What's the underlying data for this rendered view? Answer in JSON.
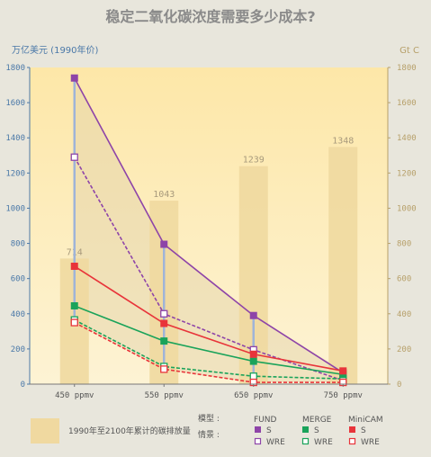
{
  "chart_data": {
    "type": "line",
    "title": "稳定二氧化碳浓度需要多少成本?",
    "ylabel_left": "万亿美元 (1990年价)",
    "ylabel_right": "Gt C",
    "categories": [
      "450 ppmv",
      "550 ppmv",
      "650 ppmv",
      "750 ppmv"
    ],
    "ylim": [
      0,
      1800
    ],
    "yticks": [
      0,
      200,
      400,
      600,
      800,
      1000,
      1200,
      1400,
      1600,
      1800
    ],
    "bars": {
      "name": "1990年至2100年累计的碳排放量",
      "values": [
        714,
        1043,
        1239,
        1348
      ],
      "labels": [
        "714",
        "1043",
        "1239",
        "1348"
      ]
    },
    "series": [
      {
        "model": "FUND",
        "scenario": "S",
        "values": [
          1740,
          795,
          390,
          65
        ],
        "color": "#8e44a8",
        "marker": "filled",
        "dash": false
      },
      {
        "model": "FUND",
        "scenario": "WRE",
        "values": [
          1290,
          400,
          195,
          20
        ],
        "color": "#8e44a8",
        "marker": "open",
        "dash": true
      },
      {
        "model": "MERGE",
        "scenario": "S",
        "values": [
          445,
          245,
          130,
          55
        ],
        "color": "#1aa35a",
        "marker": "filled",
        "dash": false
      },
      {
        "model": "MERGE",
        "scenario": "WRE",
        "values": [
          365,
          100,
          45,
          30
        ],
        "color": "#1aa35a",
        "marker": "open",
        "dash": true
      },
      {
        "model": "MiniCAM",
        "scenario": "S",
        "values": [
          670,
          345,
          170,
          75
        ],
        "color": "#e8343a",
        "marker": "filled",
        "dash": false
      },
      {
        "model": "MiniCAM",
        "scenario": "WRE",
        "values": [
          350,
          85,
          10,
          10
        ],
        "color": "#e8343a",
        "marker": "open",
        "dash": true
      }
    ],
    "grid": false
  },
  "legend": {
    "bar_label": "1990年至2100年累计的碳排放量",
    "model_label": "模型 :",
    "scenario_label": "情景 :",
    "models": [
      "FUND",
      "MERGE",
      "MiniCAM"
    ],
    "s_label": "S",
    "wre_label": "WRE"
  },
  "colors": {
    "fund": "#8e44a8",
    "merge": "#1aa35a",
    "minicam": "#e8343a",
    "axis_left": "#4a78a8",
    "axis_right": "#b7a06a",
    "bar": "#f0d9a0"
  }
}
